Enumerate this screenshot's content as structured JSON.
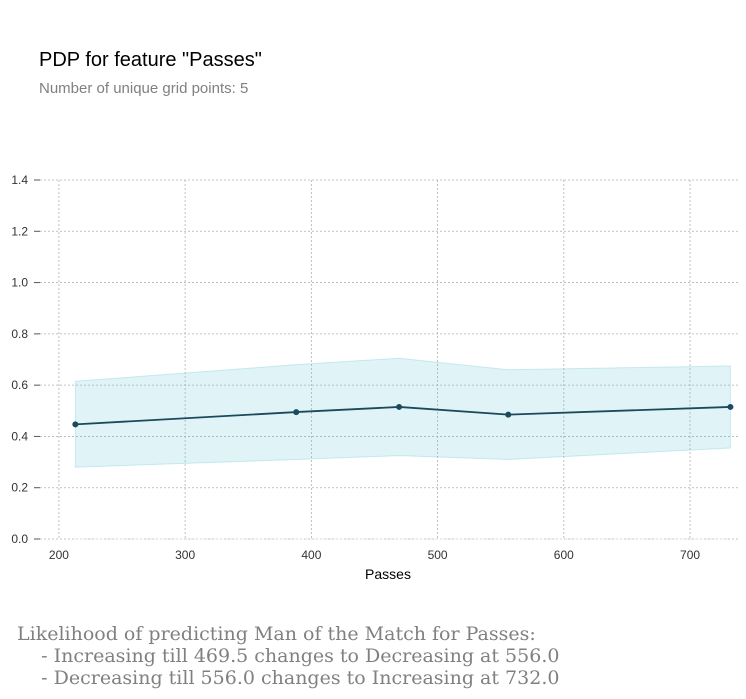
{
  "title": "PDP for feature \"Passes\"",
  "subtitle": "Number of unique grid points: 5",
  "chart_data": {
    "type": "line",
    "xlabel": "Passes",
    "ylabel": "",
    "xlim": [
      185,
      738
    ],
    "ylim": [
      0,
      1.4
    ],
    "xticks": [
      200,
      300,
      400,
      500,
      600,
      700
    ],
    "yticks": [
      0.0,
      0.2,
      0.4,
      0.6,
      0.8,
      1.0,
      1.2,
      1.4
    ],
    "xtick_labels": [
      "200",
      "300",
      "400",
      "500",
      "600",
      "700"
    ],
    "ytick_labels": [
      "0.0",
      "0.2",
      "0.4",
      "0.6",
      "0.8",
      "1.0",
      "1.2",
      "1.4"
    ],
    "grid": true,
    "x": [
      213,
      388,
      469.5,
      556,
      732
    ],
    "series": [
      {
        "values": [
          0.447,
          0.495,
          0.515,
          0.485,
          0.515
        ],
        "lower": [
          0.28,
          0.31,
          0.325,
          0.31,
          0.355
        ],
        "upper": [
          0.615,
          0.68,
          0.705,
          0.66,
          0.675
        ],
        "color": "#1a4a5c",
        "band_color": "#66c2d7"
      }
    ]
  },
  "annotation": {
    "lines": [
      "Likelihood of predicting Man of the Match for Passes:",
      "    - Increasing till 469.5 changes to Decreasing at 556.0",
      "    - Decreasing till 556.0 changes to Increasing at 732.0"
    ]
  }
}
